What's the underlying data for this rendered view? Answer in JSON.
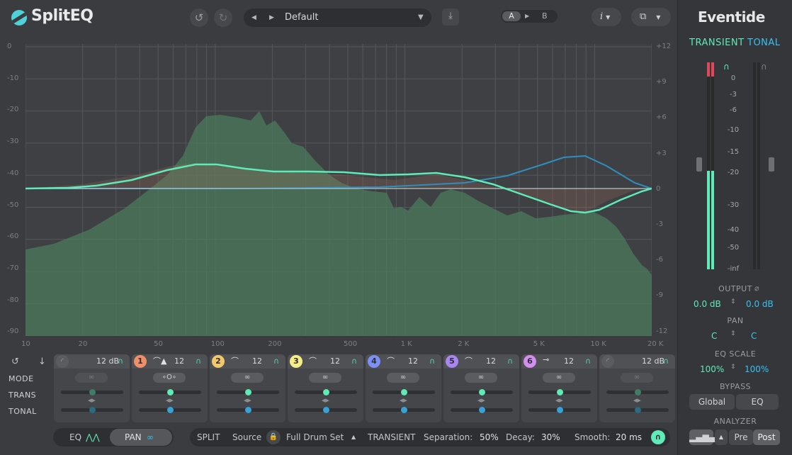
{
  "app": {
    "title": "SplitEQ"
  },
  "header": {
    "undo_icon": "undo-icon",
    "redo_icon": "redo-icon",
    "preset": {
      "name": "Default"
    },
    "ab": {
      "a": "A",
      "b": "B"
    },
    "info_label": "i"
  },
  "graph": {
    "y_left": [
      "0",
      "-10",
      "-20",
      "-30",
      "-40",
      "-50",
      "-60",
      "-70",
      "-80",
      "-90"
    ],
    "y_right": [
      "+12",
      "+9",
      "+6",
      "+3",
      "0",
      "-3",
      "-6",
      "-9",
      "-12"
    ],
    "x": [
      "10",
      "20",
      "50",
      "100",
      "200",
      "500",
      "1 K",
      "2 K",
      "5 K",
      "10 K",
      "20 K"
    ],
    "colors": {
      "curve": "#5eebb7",
      "tonal": "#2e8fbf",
      "spectrum": "#4c7a5c"
    }
  },
  "bands": [
    {
      "num": "",
      "shape": "",
      "gain": "12 dB",
      "color": "#5a5c60",
      "mode": "∞",
      "dim": true,
      "trans": 0.5,
      "tonal": 0.5
    },
    {
      "num": "1",
      "shape": "⌒▲",
      "gain": "12",
      "color": "#ef8f6a",
      "mode": "∘O∘",
      "dim": false,
      "trans": 0.5,
      "tonal": 0.5
    },
    {
      "num": "2",
      "shape": "⌒",
      "gain": "12",
      "color": "#f3c86b",
      "mode": "∞",
      "dim": false,
      "trans": 0.5,
      "tonal": 0.5
    },
    {
      "num": "3",
      "shape": "⌒",
      "gain": "12",
      "color": "#f4ee88",
      "mode": "∞",
      "dim": false,
      "trans": 0.5,
      "tonal": 0.5
    },
    {
      "num": "4",
      "shape": "⌒",
      "gain": "12",
      "color": "#7d8ff2",
      "mode": "∞",
      "dim": false,
      "trans": 0.5,
      "tonal": 0.5
    },
    {
      "num": "5",
      "shape": "⌒",
      "gain": "12",
      "color": "#a985ef",
      "mode": "∞",
      "dim": false,
      "trans": 0.5,
      "tonal": 0.5
    },
    {
      "num": "6",
      "shape": "⊸",
      "gain": "12",
      "color": "#d28ef0",
      "mode": "∞",
      "dim": false,
      "trans": 0.5,
      "tonal": 0.5
    },
    {
      "num": "",
      "shape": "",
      "gain": "12 dB",
      "color": "#5a5c60",
      "mode": "∞",
      "dim": true,
      "trans": 0.5,
      "tonal": 0.5
    }
  ],
  "rows": {
    "mode": "MODE",
    "trans": "TRANS",
    "tonal": "TONAL"
  },
  "bottom": {
    "eq": "EQ",
    "pan": "PAN",
    "split": "SPLIT",
    "source": "Source",
    "source_value": "Full Drum Set",
    "transient": "TRANSIENT",
    "separation_label": "Separation:",
    "separation_value": "50%",
    "decay_label": "Decay:",
    "decay_value": "30%",
    "smooth_label": "Smooth:",
    "smooth_value": "20 ms"
  },
  "side": {
    "brand": "Eventide",
    "transient": "TRANSIENT",
    "tonal": "TONAL",
    "meter_scale": [
      "0",
      "-3",
      "-6",
      "-10",
      "-15",
      "-20",
      "-30",
      "-40",
      "-50",
      "-inf"
    ],
    "meter_level": 0.6,
    "output": {
      "label": "OUTPUT",
      "left": "0.0 dB",
      "right": "0.0 dB"
    },
    "pan": {
      "label": "PAN",
      "left": "C",
      "right": "C"
    },
    "eq_scale": {
      "label": "EQ SCALE",
      "left": "100%",
      "right": "100%"
    },
    "bypass": {
      "label": "BYPASS",
      "global": "Global",
      "eq": "EQ"
    },
    "analyzer": {
      "label": "ANALYZER",
      "pre": "Pre",
      "post": "Post"
    },
    "colors": {
      "transient": "#5eebb7",
      "tonal": "#36c2f2"
    }
  }
}
